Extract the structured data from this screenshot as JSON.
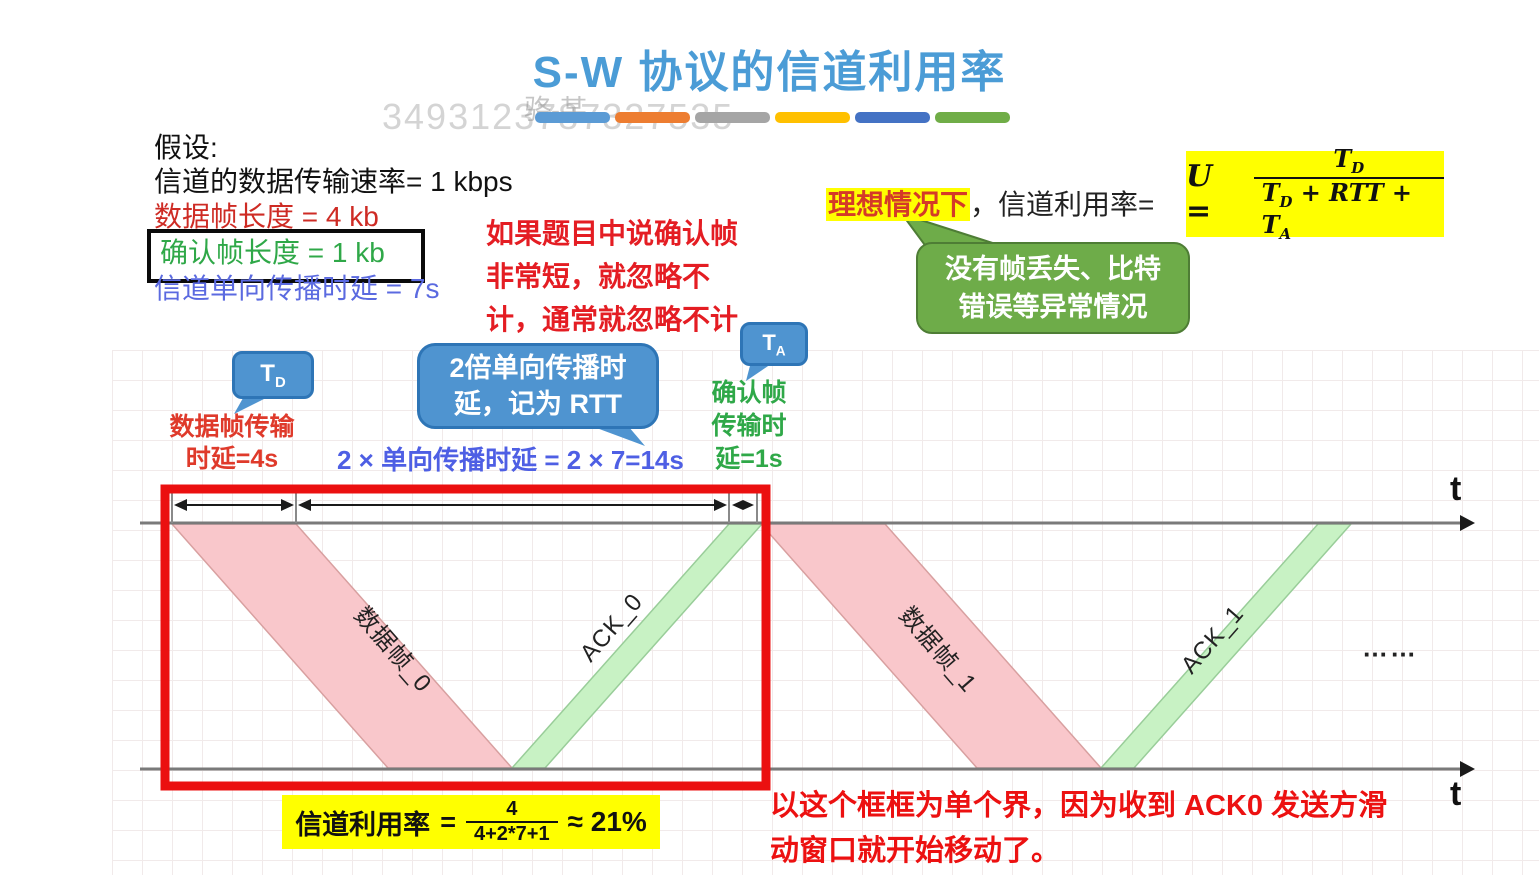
{
  "watermark": {
    "name": "骆-某",
    "id": "3493123787327535"
  },
  "title": "S-W 协议的信道利用率",
  "decor_bars": [
    "#5B9BD5",
    "#ED7D31",
    "#A5A5A5",
    "#FFC000",
    "#4472C4",
    "#70AD47"
  ],
  "assumptions": {
    "heading": "假设:",
    "rate": "信道的数据传输速率= 1 kbps",
    "data_frame": "数据帧长度 = 4 kb",
    "ack_frame": "确认帧长度 = 1 kb",
    "prop_delay": "信道单向传播时延 = 7s"
  },
  "red_note": {
    "line1": "如果题目中说确认帧",
    "line2": "非常短，就忽略不",
    "line3": "计，通常就忽略不计"
  },
  "ideal": {
    "highlight": "理想情况下",
    "rest": "，信道利用率="
  },
  "formula_top": {
    "lhs": "U",
    "eq": "=",
    "num_base": "T",
    "num_sub": "D",
    "den_t1": "T",
    "den_sub1": "D",
    "den_mid": " + RTT + ",
    "den_t2": "T",
    "den_sub2": "A"
  },
  "green_bubble": {
    "line1": "没有帧丢失、比特",
    "line2": "错误等异常情况"
  },
  "td_bubble": {
    "base": "T",
    "sub": "D"
  },
  "td_caption": {
    "line1": "数据帧传输",
    "line2": "时延=4s"
  },
  "rtt_bubble": {
    "line1": "2倍单向传播时",
    "line2": "延，记为 RTT"
  },
  "rtt_caption": "2 × 单向传播时延 = 2 × 7=14s",
  "ta_bubble": {
    "base": "T",
    "sub": "A"
  },
  "ta_caption": {
    "line1": "确认帧",
    "line2": "传输时",
    "line3": "延=1s"
  },
  "diagram": {
    "axis_label_top": "t",
    "axis_label_bottom": "t",
    "frame0_label": "数据帧_0",
    "ack0_label": "ACK_0",
    "frame1_label": "数据帧_1",
    "ack1_label": "ACK_1",
    "ellipsis": "……"
  },
  "bottom_formula": {
    "label": "信道利用率",
    "eq": "=",
    "num": "4",
    "den": "4+2*7+1",
    "approx": "≈ 21%"
  },
  "bottom_note": {
    "line1": "以这个框框为单个界，因为收到 ACK0 发送方滑",
    "line2": "动窗口就开始移动了。"
  },
  "colors": {
    "title_blue": "#4B9CD6",
    "highlight_yellow": "#FFFF00",
    "data_frame_pink": "#F9C7CB",
    "ack_band_green": "#C8F2C4",
    "bubble_blue": "#4F94D0",
    "bubble_green": "#6EAC49",
    "frame_red": "#EB1010",
    "note_red": "#E41D23",
    "prop_delay_blue": "#5B6AE0",
    "ack_text_green": "#2FA848"
  }
}
